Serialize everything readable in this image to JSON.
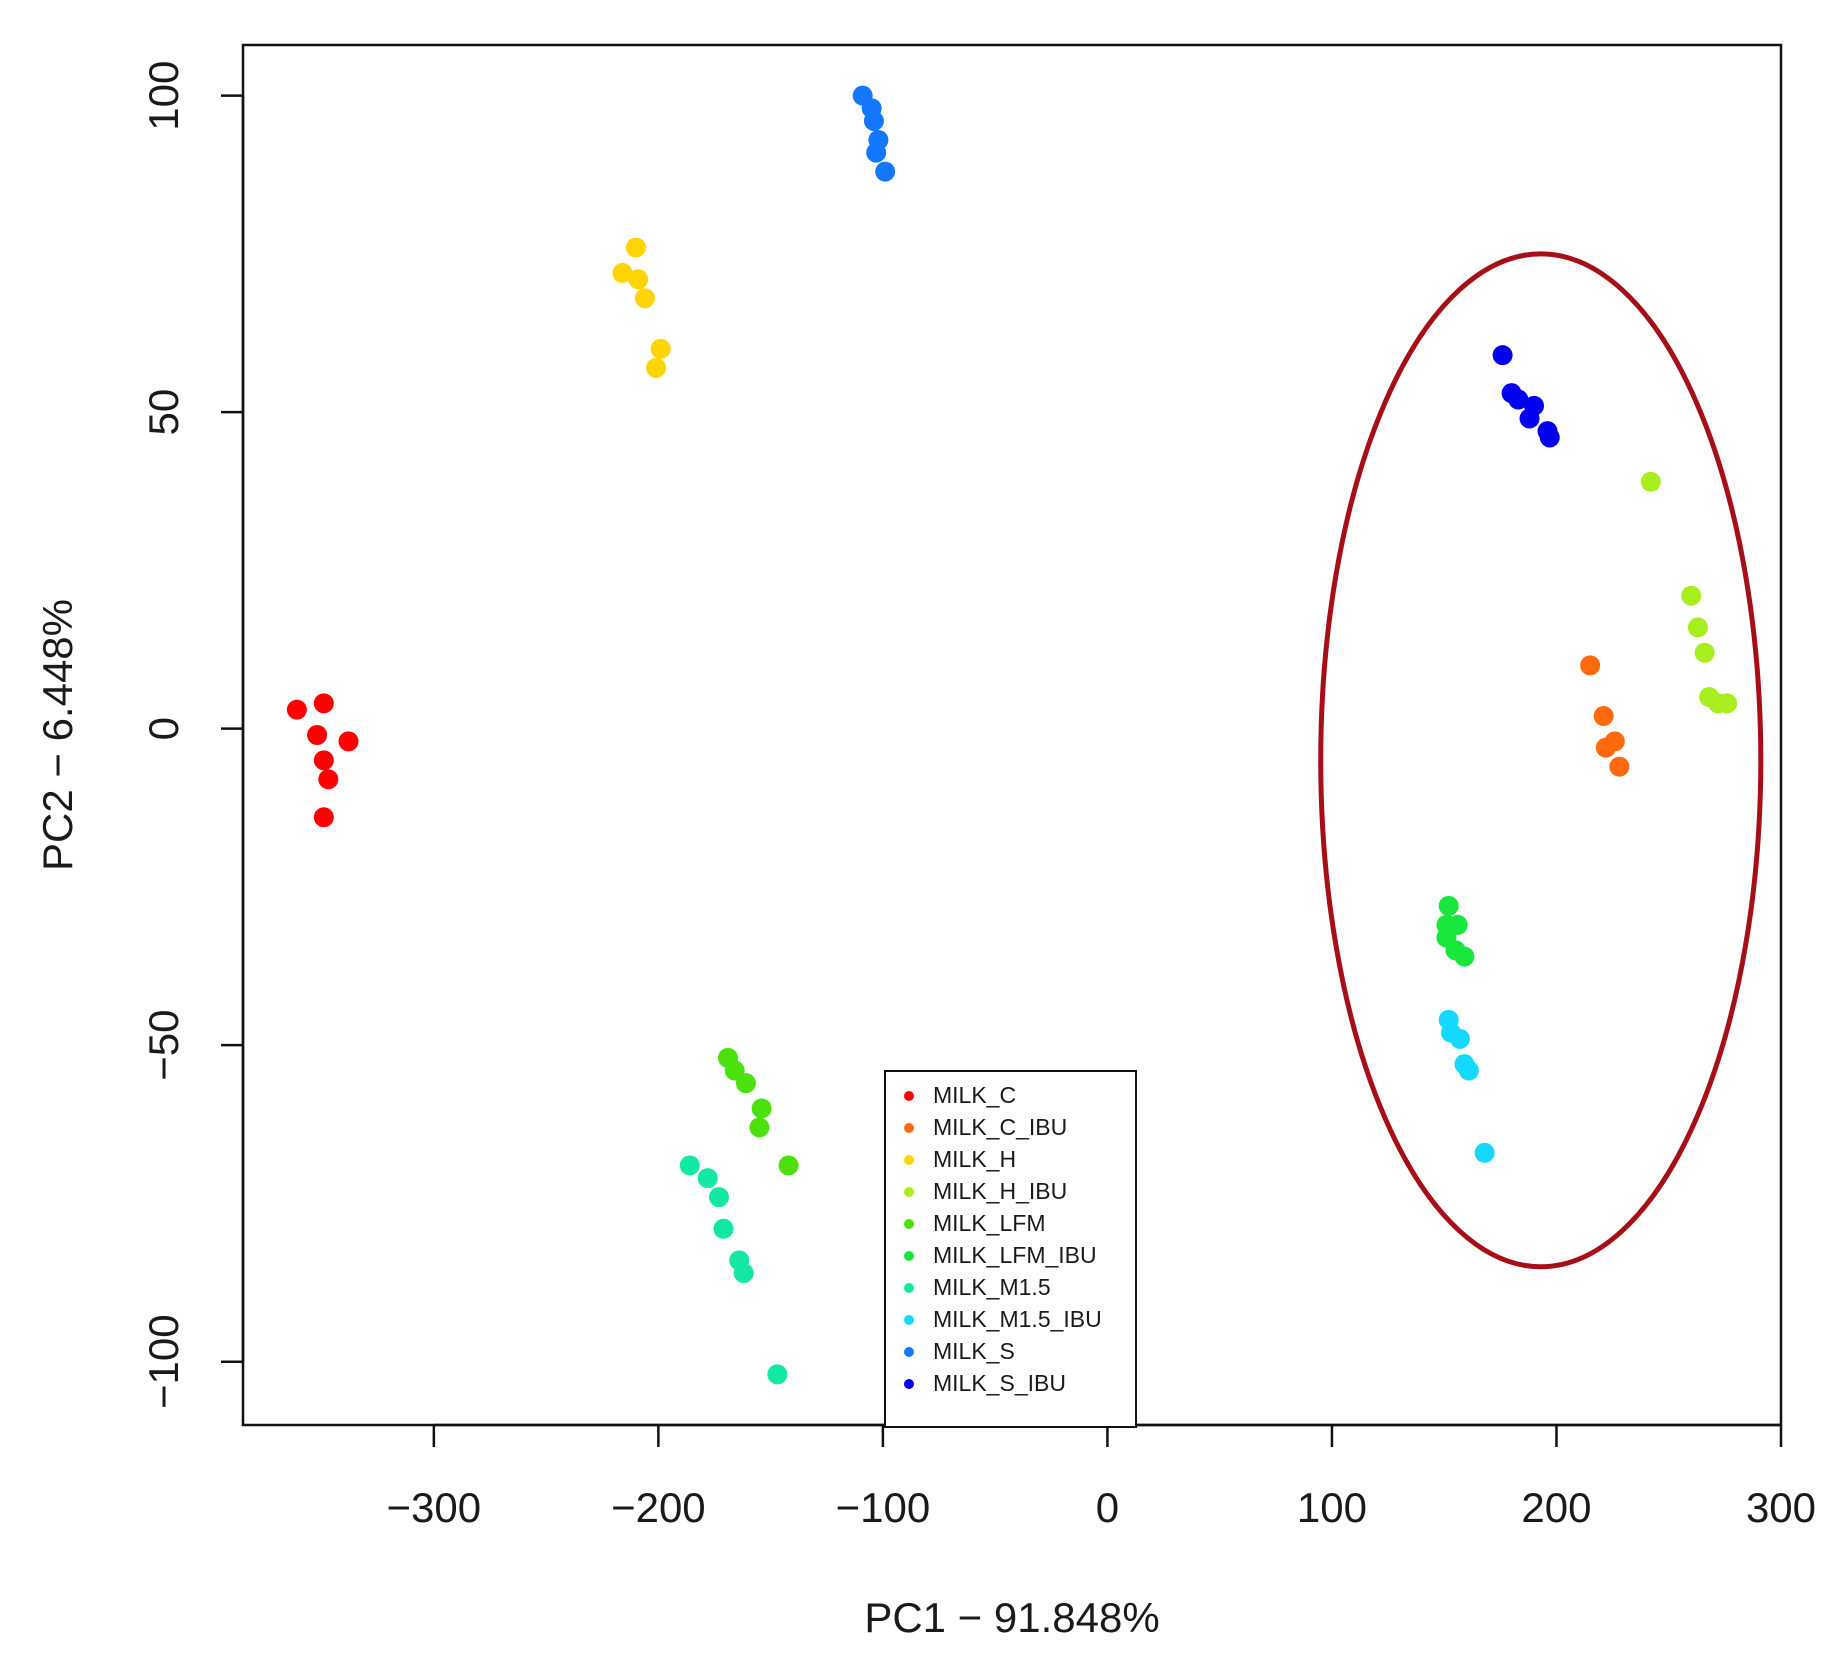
{
  "chart_data": {
    "type": "scatter",
    "xlabel": "PC1 − 91.848%",
    "ylabel": "PC2 − 6.448%",
    "xlim": [
      -385,
      300
    ],
    "ylim": [
      -110,
      108
    ],
    "xticks": [
      -300,
      -200,
      -100,
      0,
      100,
      200,
      300
    ],
    "xtick_labels": [
      "−300",
      "−200",
      "−100",
      "0",
      "100",
      "200",
      "300"
    ],
    "yticks": [
      100,
      50,
      0,
      -50,
      -100
    ],
    "ytick_labels": [
      "100",
      "50",
      "0",
      "−50",
      "−100"
    ],
    "legend_position": "bottom-center",
    "annotation": {
      "shape": "ellipse",
      "color": "#a50f15",
      "center": [
        193,
        -5
      ],
      "rx": 98,
      "ry": 80
    },
    "series": [
      {
        "name": "MILK_C",
        "color": "#ff0000",
        "points": [
          [
            -361,
            3
          ],
          [
            -349,
            4
          ],
          [
            -352,
            -1
          ],
          [
            -338,
            -2
          ],
          [
            -349,
            -5
          ],
          [
            -347,
            -8
          ],
          [
            -349,
            -14
          ]
        ]
      },
      {
        "name": "MILK_C_IBU",
        "color": "#ff6a0f",
        "points": [
          [
            215,
            10
          ],
          [
            221,
            2
          ],
          [
            222,
            -3
          ],
          [
            226,
            -2
          ],
          [
            228,
            -6
          ]
        ]
      },
      {
        "name": "MILK_H",
        "color": "#ffd400",
        "points": [
          [
            -210,
            76
          ],
          [
            -216,
            72
          ],
          [
            -209,
            71
          ],
          [
            -206,
            68
          ],
          [
            -199,
            60
          ],
          [
            -201,
            57
          ]
        ]
      },
      {
        "name": "MILK_H_IBU",
        "color": "#a8ee1e",
        "points": [
          [
            242,
            39
          ],
          [
            260,
            21
          ],
          [
            263,
            16
          ],
          [
            266,
            12
          ],
          [
            268,
            5
          ],
          [
            272,
            4
          ],
          [
            276,
            4
          ]
        ]
      },
      {
        "name": "MILK_LFM",
        "color": "#4ce00c",
        "points": [
          [
            -169,
            -52
          ],
          [
            -166,
            -54
          ],
          [
            -161,
            -56
          ],
          [
            -154,
            -60
          ],
          [
            -155,
            -63
          ],
          [
            -142,
            -69
          ]
        ]
      },
      {
        "name": "MILK_LFM_IBU",
        "color": "#19e63c",
        "points": [
          [
            152,
            -28
          ],
          [
            151,
            -31
          ],
          [
            156,
            -31
          ],
          [
            151,
            -33
          ],
          [
            155,
            -35
          ],
          [
            159,
            -36
          ]
        ]
      },
      {
        "name": "MILK_M1.5",
        "color": "#14e6a3",
        "points": [
          [
            -186,
            -69
          ],
          [
            -178,
            -71
          ],
          [
            -173,
            -74
          ],
          [
            -171,
            -79
          ],
          [
            -164,
            -84
          ],
          [
            -162,
            -86
          ],
          [
            -147,
            -102
          ]
        ]
      },
      {
        "name": "MILK_M1.5_IBU",
        "color": "#14d8ff",
        "points": [
          [
            152,
            -46
          ],
          [
            153,
            -48
          ],
          [
            157,
            -49
          ],
          [
            159,
            -53
          ],
          [
            161,
            -54
          ],
          [
            168,
            -67
          ]
        ]
      },
      {
        "name": "MILK_S",
        "color": "#1478ff",
        "points": [
          [
            -109,
            100
          ],
          [
            -105,
            98
          ],
          [
            -104,
            96
          ],
          [
            -102,
            93
          ],
          [
            -103,
            91
          ],
          [
            -99,
            88
          ]
        ]
      },
      {
        "name": "MILK_S_IBU",
        "color": "#0000ee",
        "points": [
          [
            176,
            59
          ],
          [
            180,
            53
          ],
          [
            183,
            52
          ],
          [
            190,
            51
          ],
          [
            188,
            49
          ],
          [
            196,
            47
          ],
          [
            197,
            46
          ]
        ]
      }
    ]
  }
}
